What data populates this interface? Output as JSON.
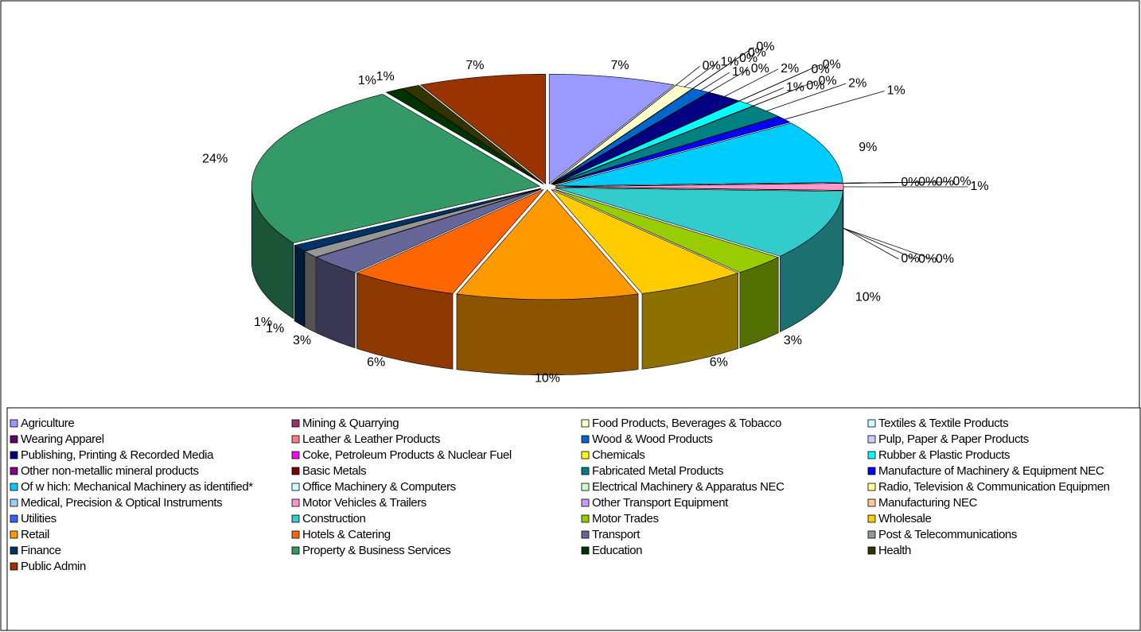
{
  "chart_data": {
    "type": "pie3d",
    "categories": [
      "Agriculture",
      "Mining & Quarrying",
      "Food Products, Beverages & Tobacco",
      "Textiles & Textile Products",
      "Wearing Apparel",
      "Leather & Leather Products",
      "Wood & Wood Products",
      "Pulp, Paper & Paper Products",
      "Publishing, Printing & Recorded Media",
      "Coke, Petroleum Products & Nuclear Fuel",
      "Chemicals",
      "Rubber & Plastic Products",
      "Other non-metallic mineral products",
      "Basic Metals",
      "Fabricated Metal Products",
      "Manufacture of Machinery & Equipment NEC",
      "Of w hich: Mechanical Machinery as identified*",
      "Office Machinery & Computers",
      "Electrical Machinery & Apparatus NEC",
      "Radio, Television & Communication Equipmen",
      "Medical, Precision & Optical Instruments",
      "Motor Vehicles & Trailers",
      "Other Transport Equipment",
      "Manufacturing NEC",
      "Utilities",
      "Construction",
      "Motor Trades",
      "Wholesale",
      "Retail",
      "Hotels & Catering",
      "Transport",
      "Post & Telecommunications",
      "Finance",
      "Property & Business Services",
      "Education",
      "Health",
      "Public Admin"
    ],
    "values": [
      7,
      0,
      1,
      0,
      0,
      0,
      1,
      0,
      2,
      0,
      0,
      1,
      0,
      0,
      2,
      1,
      9,
      0,
      0,
      0,
      0,
      1,
      0,
      0,
      0,
      10,
      3,
      6,
      10,
      6,
      3,
      1,
      1,
      24,
      1,
      1,
      7
    ],
    "value_labels": [
      "7%",
      "0%",
      "1%",
      "0%",
      "0%",
      "0%",
      "1%",
      "0%",
      "2%",
      "0%",
      "0%",
      "1%",
      "0%",
      "0%",
      "2%",
      "1%",
      "9%",
      "0%",
      "0%",
      "0%",
      "0%",
      "1%",
      "0%",
      "0%",
      "0%",
      "10%",
      "3%",
      "6%",
      "10%",
      "6%",
      "3%",
      "1%",
      "1%",
      "24%",
      "1%",
      "1%",
      "7%"
    ],
    "colors": [
      "#9999ff",
      "#993366",
      "#ffffcc",
      "#ccffff",
      "#660066",
      "#ff8080",
      "#0066cc",
      "#ccccff",
      "#000080",
      "#ff00ff",
      "#ffff00",
      "#00ffff",
      "#800080",
      "#800000",
      "#008080",
      "#0000ff",
      "#00ccff",
      "#ccffff",
      "#ccffcc",
      "#ffff99",
      "#99ccff",
      "#ff99cc",
      "#cc99ff",
      "#ffcc99",
      "#3366ff",
      "#33cccc",
      "#99cc00",
      "#ffcc00",
      "#ff9900",
      "#ff6600",
      "#666699",
      "#969696",
      "#003366",
      "#339966",
      "#003300",
      "#333300",
      "#993300"
    ],
    "legend": "bottom"
  }
}
